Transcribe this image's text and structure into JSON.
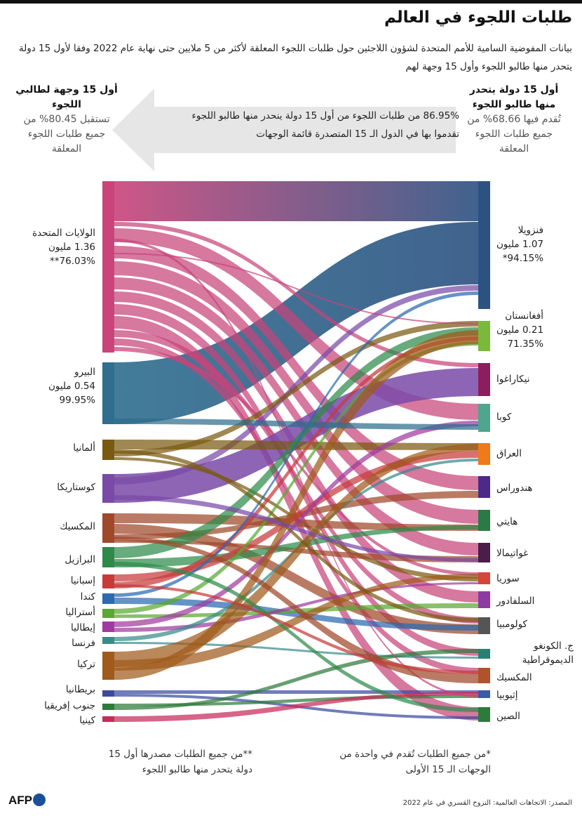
{
  "title": "طلبات اللجوء في العالم",
  "subtitle": "بيانات المفوضية السامية للأمم المتحدة لشؤون اللاجئين حول طلبات اللجوء المعلقة لأكثر من 5 ملايين حتى نهاية عام 2022 وفقا لأول 15 دولة يتحدر منها طالبو اللجوء وأول 15 وجهة لهم",
  "right_heading": {
    "title": "أول 15 دولة يتحدر منها طالبو اللجوء",
    "pct": "تُقدم فيها 68.66% من جميع طلبات اللجوء المعلقة"
  },
  "left_heading": {
    "title": "أول 15 وجهة لطالبي اللجوء",
    "pct": "تستقبل 80.45% من جميع طلبات اللجوء المعلقة"
  },
  "arrow_text": "86.95% من طلبات اللجوء من أول 15 دولة ينحدر منها طالبو اللجوء تقدموا بها في الدول الـ 15 المتصدرة قائمة الوجهات",
  "origins": [
    {
      "name": "فنزويلا",
      "value": "1.07 مليون",
      "pct": "94.15%*",
      "color": "#2c5282"
    },
    {
      "name": "أفغانستان",
      "value": "0.21 مليون",
      "pct": "71.35%",
      "color": "#7ab93a"
    },
    {
      "name": "نيكاراغوا",
      "color": "#8b1f5e"
    },
    {
      "name": "كوبا",
      "color": "#4fa58e"
    },
    {
      "name": "العراق",
      "color": "#ee7a1a"
    },
    {
      "name": "هندوراس",
      "color": "#4b2a8a"
    },
    {
      "name": "هايتي",
      "color": "#2a7a48"
    },
    {
      "name": "غواتيمالا",
      "color": "#4a1d4a"
    },
    {
      "name": "سوريا",
      "color": "#d6453a"
    },
    {
      "name": "السلفادور",
      "color": "#8e3aa3"
    },
    {
      "name": "كولومبيا",
      "color": "#555555"
    },
    {
      "name": "ج. الكونغو الديموقراطية",
      "color": "#2a8070"
    },
    {
      "name": "المكسيك",
      "color": "#b0522a"
    },
    {
      "name": "إثيوبيا",
      "color": "#3a5aa8"
    },
    {
      "name": "الصين",
      "color": "#2e7a3a"
    }
  ],
  "destinations": [
    {
      "name": "الولايات المتحدة",
      "value": "1.36 مليون",
      "pct": "76.03%**",
      "color": "#c8447a"
    },
    {
      "name": "البيرو",
      "value": "0.54 مليون",
      "pct": "99.95%",
      "color": "#2e6e8e"
    },
    {
      "name": "ألمانيا",
      "color": "#7a5a10"
    },
    {
      "name": "كوستاريكا",
      "color": "#7a4aa8"
    },
    {
      "name": "المكسيك",
      "color": "#a0482a"
    },
    {
      "name": "البرازيل",
      "color": "#2e8a4a"
    },
    {
      "name": "إسبانيا",
      "color": "#c83a3a"
    },
    {
      "name": "كندا",
      "color": "#2a6ab0"
    },
    {
      "name": "أستراليا",
      "color": "#5aa832"
    },
    {
      "name": "إيطاليا",
      "color": "#a03aa0"
    },
    {
      "name": "فرنسا",
      "color": "#3a8a8a"
    },
    {
      "name": "تركيا",
      "color": "#a05a1a"
    },
    {
      "name": "بريطانيا",
      "color": "#3a4aa0"
    },
    {
      "name": "جنوب إفريقيا",
      "color": "#2e7a3a"
    },
    {
      "name": "كينيا",
      "color": "#c82a5a"
    }
  ],
  "note_left": "**من جميع الطلبات مصدرها أول 15 دولة يتحدر منها طالبو اللجوء",
  "note_right": "*من جميع الطلبات تُقدم في واحدة من الوجهات الـ 15 الأولى",
  "logo": "AFP",
  "source": "المصدر: الاتجاهات العالمية: النزوح القسري في عام 2022"
}
